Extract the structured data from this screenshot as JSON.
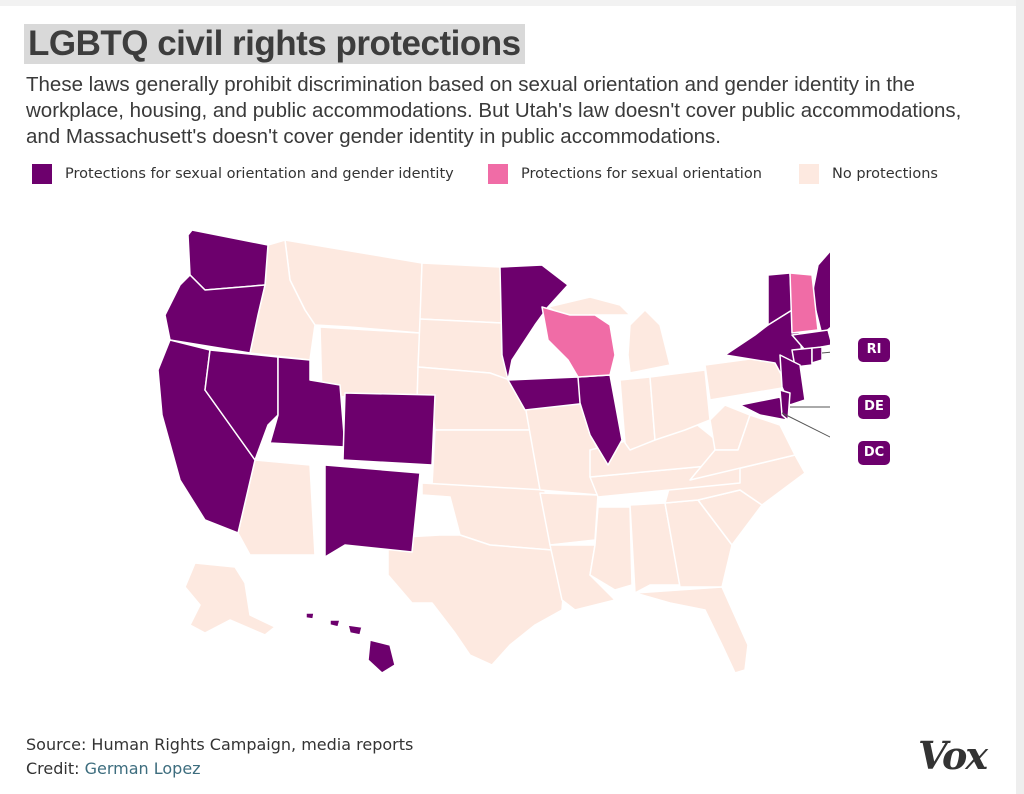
{
  "title": "LGBTQ civil rights protections",
  "subtitle": "These laws generally prohibit discrimination based on sexual orientation and gender identity in the workplace, housing, and public accommodations. But Utah's law doesn't cover public accommodations, and Massachusett's doesn't cover gender identity in public accommodations.",
  "legend": [
    {
      "label": "Protections for sexual orientation and gender identity",
      "color": "#6d006d"
    },
    {
      "label": "Protections for sexual orientation",
      "color": "#f06ca6"
    },
    {
      "label": "No protections",
      "color": "#fde9e0"
    }
  ],
  "callouts": {
    "ri": "RI",
    "de": "DE",
    "dc": "DC"
  },
  "footer": {
    "source": "Source: Human Rights Campaign, media reports",
    "credit_prefix": "Credit: ",
    "credit_name": "German Lopez"
  },
  "brand": "Vox",
  "colors": {
    "full": "#6d006d",
    "partial": "#f06ca6",
    "none": "#fde9e0",
    "border": "#ffffff"
  }
}
